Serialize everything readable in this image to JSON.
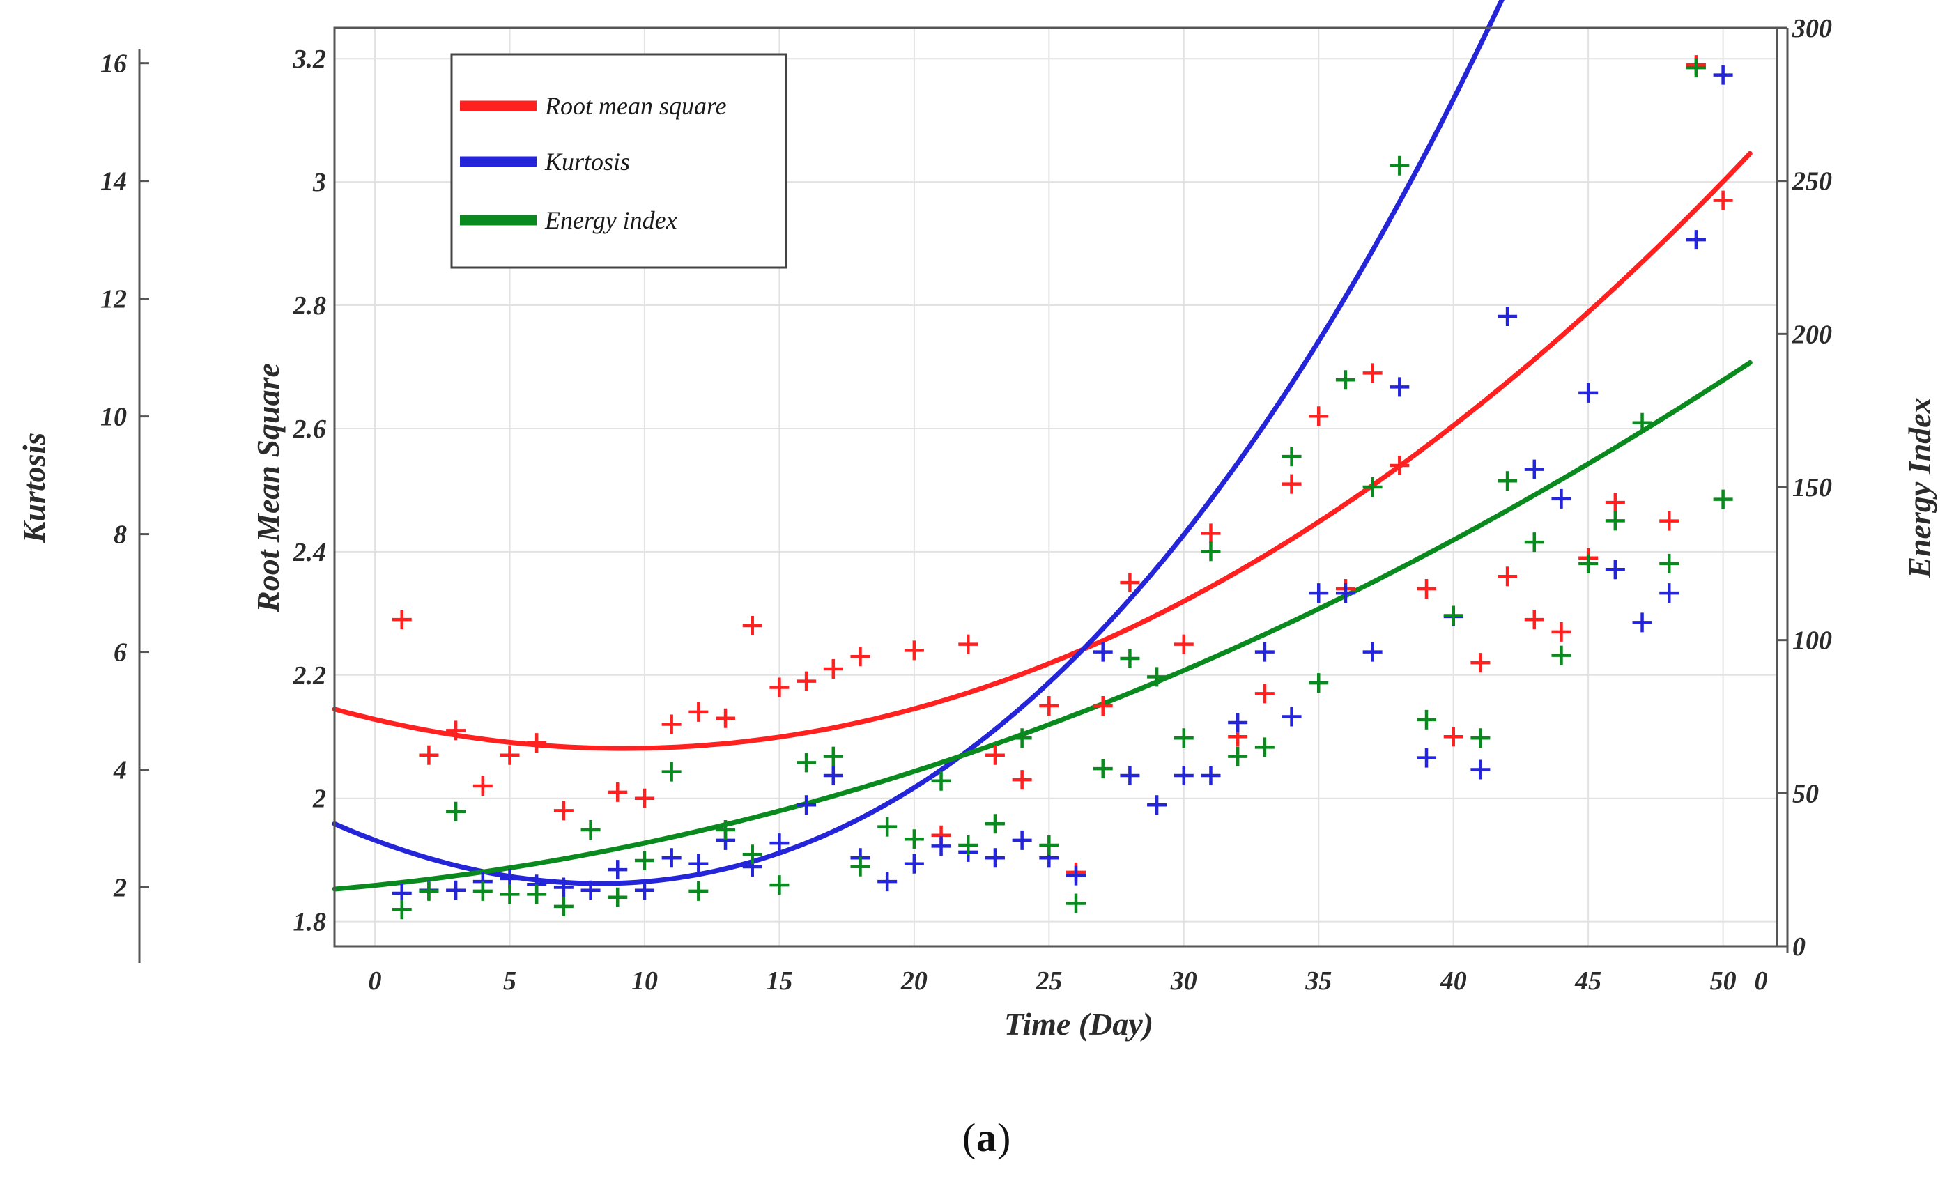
{
  "chart_data": {
    "type": "scatter",
    "caption_letter": "a",
    "xlabel": "Time (Day)",
    "x_ticks": [
      "0",
      "5",
      "10",
      "15",
      "20",
      "25",
      "30",
      "35",
      "40",
      "45",
      "50"
    ],
    "x_end_tick": "0",
    "xlim": [
      -1.5,
      52
    ],
    "axes": {
      "rms": {
        "label": "Root Mean Square",
        "ylim": [
          1.76,
          3.25
        ],
        "ticks": [
          "1.8",
          "2",
          "2.2",
          "2.4",
          "2.6",
          "2.8",
          "3",
          "3.2"
        ],
        "tick_values": [
          1.8,
          2.0,
          2.2,
          2.4,
          2.6,
          2.8,
          3.0,
          3.2
        ]
      },
      "kurtosis": {
        "label": "Kurtosis",
        "ylim": [
          1.0,
          16.6
        ],
        "ticks": [
          "2",
          "4",
          "6",
          "8",
          "10",
          "12",
          "14",
          "16"
        ],
        "tick_values": [
          2,
          4,
          6,
          8,
          10,
          12,
          14,
          16
        ]
      },
      "energy": {
        "label": "Energy Index",
        "ylim": [
          0,
          300
        ],
        "ticks": [
          "0",
          "50",
          "100",
          "150",
          "200",
          "250",
          "300"
        ],
        "tick_values": [
          0,
          50,
          100,
          150,
          200,
          250,
          300
        ]
      }
    },
    "legend": [
      {
        "name": "Root mean square",
        "color": "#ff2020"
      },
      {
        "name": "Kurtosis",
        "color": "#2424d8"
      },
      {
        "name": "Energy index",
        "color": "#0a8a1e"
      }
    ],
    "series": [
      {
        "name": "Root mean square",
        "axis": "rms",
        "color": "#ff2020",
        "marker": "plus",
        "x": [
          1,
          2,
          3,
          4,
          5,
          6,
          7,
          9,
          10,
          11,
          12,
          13,
          14,
          15,
          16,
          17,
          18,
          20,
          21,
          22,
          23,
          24,
          25,
          26,
          27,
          28,
          30,
          31,
          32,
          33,
          34,
          35,
          36,
          37,
          38,
          39,
          40,
          41,
          42,
          43,
          44,
          45,
          46,
          48,
          49,
          50
        ],
        "y": [
          2.29,
          2.07,
          2.11,
          2.02,
          2.07,
          2.09,
          1.98,
          2.01,
          2.0,
          2.12,
          2.14,
          2.13,
          2.28,
          2.18,
          2.19,
          2.21,
          2.23,
          2.24,
          1.94,
          2.25,
          2.07,
          2.03,
          2.15,
          1.88,
          2.15,
          2.35,
          2.25,
          2.43,
          2.1,
          2.17,
          2.51,
          2.62,
          2.34,
          2.69,
          2.54,
          2.34,
          2.1,
          2.22,
          2.36,
          2.29,
          2.27,
          2.39,
          2.48,
          2.45,
          3.19,
          2.97
        ],
        "fit": [
          2.128,
          -0.0102,
          0.000553,
          0
        ]
      },
      {
        "name": "Kurtosis",
        "axis": "kurtosis",
        "color": "#2424d8",
        "marker": "plus",
        "x": [
          1,
          2,
          3,
          4,
          5,
          6,
          7,
          8,
          9,
          10,
          11,
          12,
          13,
          14,
          15,
          16,
          17,
          18,
          19,
          20,
          21,
          22,
          23,
          24,
          25,
          26,
          27,
          28,
          29,
          30,
          31,
          32,
          33,
          34,
          35,
          36,
          37,
          38,
          39,
          40,
          41,
          42,
          43,
          44,
          45,
          46,
          47,
          48,
          49,
          50
        ],
        "y": [
          1.9,
          1.95,
          1.95,
          2.1,
          2.15,
          2.05,
          2.0,
          1.95,
          2.3,
          1.95,
          2.5,
          2.4,
          2.8,
          2.35,
          2.75,
          3.4,
          3.9,
          2.5,
          2.1,
          2.4,
          2.7,
          2.6,
          2.5,
          2.8,
          2.5,
          2.2,
          6.0,
          3.9,
          3.4,
          3.9,
          3.9,
          4.8,
          6.0,
          4.9,
          7.0,
          7.0,
          6.0,
          10.5,
          4.2,
          6.6,
          4.0,
          11.7,
          9.1,
          8.6,
          10.4,
          7.4,
          6.5,
          7.0,
          13.0,
          15.8
        ],
        "fit": [
          2.8,
          -0.172,
          0.0095,
          6.67e-05
        ]
      },
      {
        "name": "Energy index",
        "axis": "energy",
        "color": "#0a8a1e",
        "marker": "plus",
        "x": [
          1,
          2,
          3,
          4,
          5,
          6,
          7,
          8,
          9,
          10,
          11,
          12,
          13,
          14,
          15,
          16,
          17,
          18,
          19,
          20,
          21,
          22,
          23,
          24,
          25,
          26,
          27,
          28,
          29,
          30,
          31,
          32,
          33,
          34,
          35,
          36,
          37,
          38,
          39,
          40,
          41,
          42,
          43,
          44,
          45,
          46,
          47,
          48,
          49,
          50
        ],
        "y": [
          12,
          18,
          44,
          18,
          17,
          17,
          13,
          38,
          16,
          28,
          57,
          18,
          38,
          30,
          20,
          60,
          62,
          26,
          39,
          35,
          54,
          33,
          40,
          68,
          33,
          14,
          58,
          94,
          88,
          68,
          129,
          62,
          65,
          160,
          86,
          185,
          150,
          255,
          74,
          108,
          68,
          152,
          132,
          95,
          125,
          139,
          171,
          125,
          287,
          146
        ],
        "fit": [
          19.9,
          0.9,
          0.048,
          0
        ]
      }
    ]
  }
}
